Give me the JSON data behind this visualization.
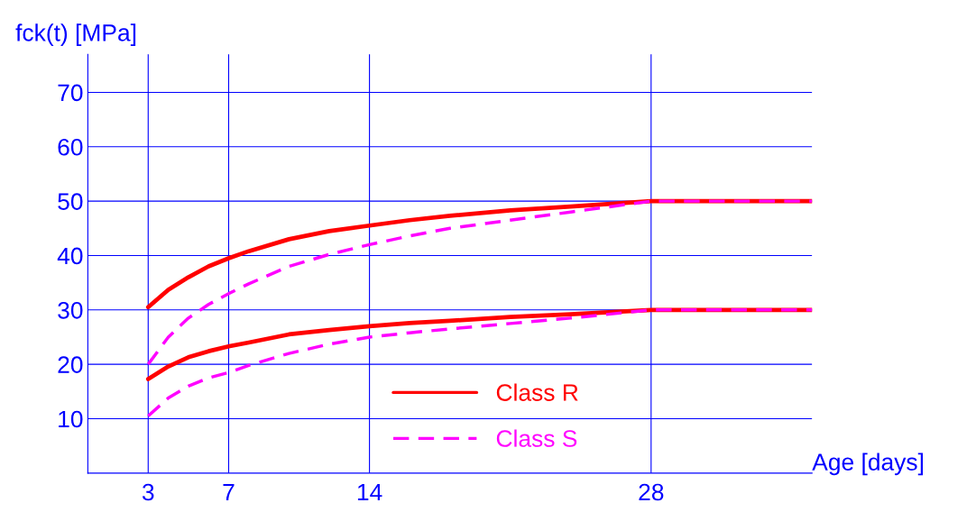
{
  "chart_data": {
    "type": "line",
    "xlabel": "Age [days]",
    "ylabel": "fck(t) [MPa]",
    "x": [
      3,
      4,
      5,
      6,
      7,
      8,
      10,
      12,
      14,
      16,
      18,
      21,
      24,
      28,
      36
    ],
    "series": [
      {
        "name": "Class R",
        "color": "#ff0000",
        "line_style": "solid",
        "values": [
          30.5,
          33.7,
          36,
          38,
          39.5,
          40.8,
          43,
          44.5,
          45.5,
          46.5,
          47.3,
          48.3,
          49,
          50,
          50
        ]
      },
      {
        "color": "#ff0000",
        "line_style": "solid",
        "values": [
          17.3,
          19.6,
          21.3,
          22.4,
          23.3,
          24,
          25.5,
          26.3,
          27,
          27.6,
          28,
          28.7,
          29.2,
          30,
          30
        ]
      },
      {
        "name": "Class S",
        "color": "#ff00ff",
        "line_style": "dashed",
        "values": [
          20,
          25,
          28.5,
          31,
          33,
          34.8,
          38,
          40.2,
          42,
          43.6,
          45,
          46.5,
          48,
          50,
          50
        ]
      },
      {
        "color": "#ff00ff",
        "line_style": "dashed",
        "values": [
          10.5,
          13.8,
          16,
          17.5,
          18.5,
          19.8,
          22,
          23.7,
          25,
          25.8,
          26.5,
          27.5,
          28.5,
          30,
          30
        ]
      }
    ],
    "xlim": [
      0,
      36
    ],
    "xticks": [
      3,
      7,
      14,
      28
    ],
    "ylim": [
      0,
      77
    ],
    "yticks": [
      10,
      20,
      30,
      40,
      50,
      60,
      70
    ],
    "grid": true,
    "legend": "bottom",
    "marker": "none"
  }
}
